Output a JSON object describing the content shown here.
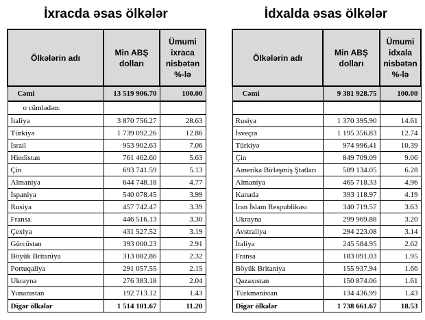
{
  "left": {
    "title": "İxracda əsas ölkələr",
    "columns": [
      "Ölkələrin adı",
      "Min ABŞ dolları",
      "Ümumi ixraca nisbətən %-lə"
    ],
    "total": [
      "Cəmi",
      "13 519 906.70",
      "100.00"
    ],
    "subheader": "o cümlədən:",
    "rows": [
      [
        "İtaliya",
        "3 870 756.27",
        "28.63"
      ],
      [
        "Türkiyə",
        "1 739 092.26",
        "12.86"
      ],
      [
        "İsrail",
        "953 902.63",
        "7.06"
      ],
      [
        "Hindistan",
        "761 462.60",
        "5.63"
      ],
      [
        "Çin",
        "693 741.59",
        "5.13"
      ],
      [
        "Almaniya",
        "644 748.18",
        "4.77"
      ],
      [
        "İspaniya",
        "540 078.45",
        "3.99"
      ],
      [
        "Rusiya",
        "457 742.47",
        "3.39"
      ],
      [
        "Fransa",
        "446 516.13",
        "3.30"
      ],
      [
        "Çexiya",
        "431 527.52",
        "3.19"
      ],
      [
        "Gürcüstan",
        "393 000.23",
        "2.91"
      ],
      [
        "Böyük Britaniya",
        "313 082.86",
        "2.32"
      ],
      [
        "Portuqaliya",
        "291 057.55",
        "2.15"
      ],
      [
        "Ukrayna",
        "276 383.18",
        "2.04"
      ],
      [
        "Yunanıstan",
        "192 713.12",
        "1.43"
      ]
    ],
    "other": [
      "Digər ölkələr",
      "1 514 101.67",
      "11.20"
    ]
  },
  "right": {
    "title": "İdxalda əsas ölkələr",
    "columns": [
      "Ölkələrin adı",
      "Min ABŞ dolları",
      "Ümumi idxala nisbətən %-lə"
    ],
    "total": [
      "Cəmi",
      "9 381 928.75",
      "100.00"
    ],
    "rows": [
      [
        "Rusiya",
        "1 370 395.90",
        "14.61"
      ],
      [
        "İsveçrə",
        "1 195 356.83",
        "12.74"
      ],
      [
        "Türkiyə",
        "974 996.41",
        "10.39"
      ],
      [
        "Çin",
        "849 709.09",
        "9.06"
      ],
      [
        "Amerika Birləşmiş Ştatları",
        "589 134.05",
        "6.28"
      ],
      [
        "Almaniya",
        "465 718.33",
        "4.96"
      ],
      [
        "Kanada",
        "393 118.97",
        "4.19"
      ],
      [
        "İran İslam Respublikası",
        "340 719.57",
        "3.63"
      ],
      [
        "Ukrayna",
        "299 969.88",
        "3.20"
      ],
      [
        "Avstraliya",
        "294 223.08",
        "3.14"
      ],
      [
        "İtaliya",
        "245 584.95",
        "2.62"
      ],
      [
        "Fransa",
        "183 091.03",
        "1.95"
      ],
      [
        "Böyük Britaniya",
        "155 937.94",
        "1.66"
      ],
      [
        "Qazaxıstan",
        "150 874.06",
        "1.61"
      ],
      [
        "Türkmənistan",
        "134 436.99",
        "1.43"
      ]
    ],
    "other": [
      "Digər ölkələr",
      "1 738 661.67",
      "18.53"
    ]
  }
}
